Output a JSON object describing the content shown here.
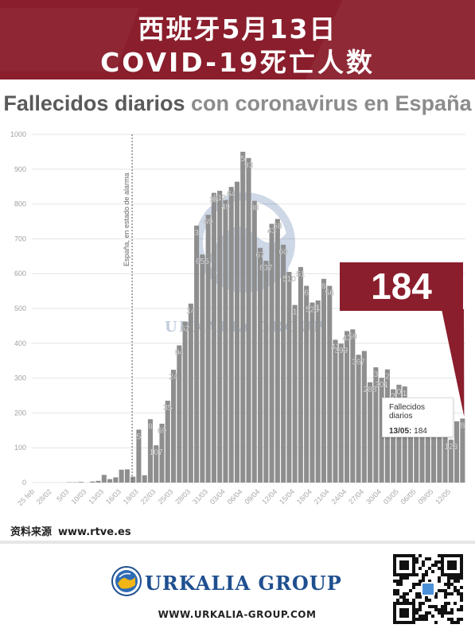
{
  "banner": {
    "line1": "西班牙5月13日",
    "line2": "COVID-19死亡人数"
  },
  "title_part1": "Fallecidos diarios",
  "title_part2": " con coronavirus en España",
  "callout_value": "184",
  "tooltip": {
    "title": "Fallecidos diarios",
    "date": "13/05:",
    "value": "184"
  },
  "source": {
    "label": "资料来源",
    "url": "www.rtve.es"
  },
  "brand": "URKALIA GROUP",
  "watermark_text": "URKALIA GROUP",
  "website": "WWW.URKALIA-GROUP.COM",
  "colors": {
    "banner": "#8a1e2c",
    "bar": "#8e8e8e",
    "grid": "#e4e4e4",
    "brand_blue": "#1f4f8f"
  },
  "chart_data": {
    "type": "bar",
    "title": "Fallecidos diarios con coronavirus en España",
    "ylim": [
      0,
      1000
    ],
    "yticks": [
      0,
      100,
      200,
      300,
      400,
      500,
      600,
      700,
      800,
      900,
      1000
    ],
    "grid": true,
    "alarm_line_label": "España, en estado de alarma",
    "alarm_index": 17,
    "xticks": [
      "25 feb",
      "28/02",
      "5/03",
      "10/03",
      "13/03",
      "16/03",
      "19/03",
      "22/03",
      "25/03",
      "28/03",
      "31/03",
      "03/04",
      "06/04",
      "09/04",
      "12/04",
      "15/04",
      "18/04",
      "21/04",
      "24/04",
      "27/04",
      "30/04",
      "03/05",
      "06/05",
      "09/05",
      "12/05"
    ],
    "values": [
      0,
      0,
      0,
      0,
      0,
      0,
      1,
      1,
      2,
      0,
      3,
      5,
      22,
      10,
      15,
      37,
      38,
      17,
      152,
      21,
      182,
      107,
      169,
      235,
      324,
      394,
      462,
      514,
      738,
      655,
      769,
      832,
      838,
      812,
      849,
      864,
      950,
      932,
      809,
      674,
      637,
      743,
      757,
      683,
      605,
      510,
      619,
      565,
      517,
      523,
      585,
      565,
      410,
      399,
      435,
      440,
      367,
      378,
      288,
      331,
      301,
      325,
      268,
      281,
      276,
      213,
      242,
      164,
      185,
      179,
      229,
      143,
      123,
      176,
      184
    ],
    "data_labels": [
      null,
      null,
      null,
      null,
      null,
      null,
      null,
      null,
      null,
      null,
      null,
      null,
      null,
      null,
      null,
      null,
      null,
      null,
      "5",
      null,
      "8",
      "107",
      "69",
      "35",
      "24",
      "94",
      "62",
      "14",
      "3",
      "655",
      "69",
      "38",
      "812",
      "49",
      "64",
      null,
      "5",
      "93",
      "80",
      "67",
      "637",
      "43",
      "68",
      "60",
      "510",
      "1",
      "51",
      "6",
      "523",
      "1",
      "8",
      "56",
      "41",
      "399",
      "43",
      "59",
      "367",
      null,
      "288",
      "3",
      "301",
      "2",
      "2",
      "0",
      "1",
      null,
      null,
      null,
      null,
      null,
      null,
      null,
      "123",
      null,
      "8"
    ]
  }
}
